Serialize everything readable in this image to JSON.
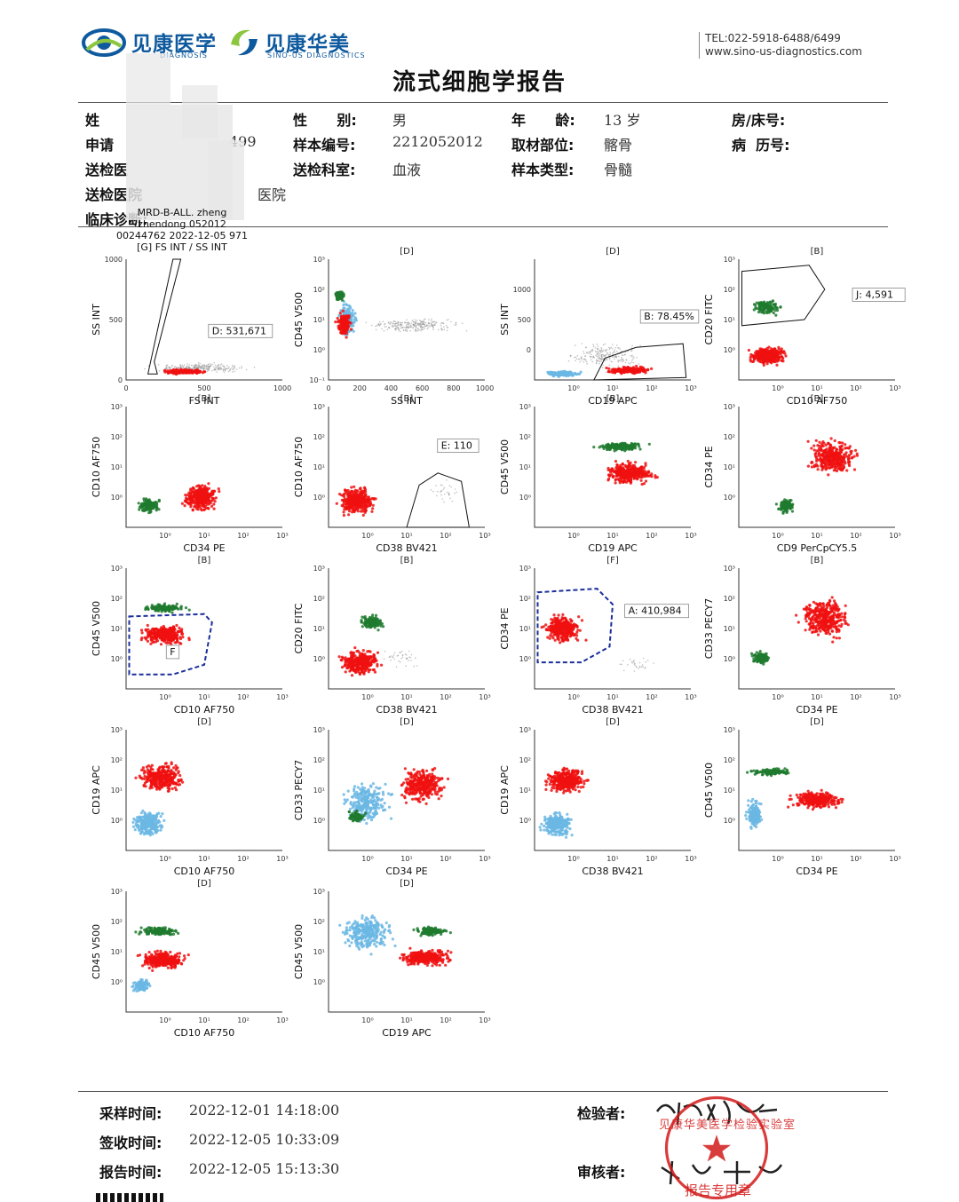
{
  "header": {
    "brand1": "见康医学",
    "brand1_sub": "DIAGNOSIS",
    "brand2": "见康华美",
    "brand2_sub": "SINO-US DIAGNOSTICS",
    "tel": "TEL:022-5918-6488/6499",
    "web": "www.sino-us-diagnostics.com",
    "title": "流式细胞学报告",
    "brand_color": "#0f5a9e"
  },
  "patient": {
    "name_label": "姓",
    "name_value": "",
    "gender_label": "性      别:",
    "gender_value": "男",
    "age_label": "年      龄:",
    "age_value": "13 岁",
    "bed_label": "房/床号:",
    "apply_label": "申请",
    "apply_value": "499",
    "sample_no_label": "样本编号:",
    "sample_no_value": "2212052012",
    "site_label": "取材部位:",
    "site_value": "髂骨",
    "record_label": "病  历号:",
    "doctor_label": "送检医",
    "dept_label": "送检科室:",
    "dept_value": "血液",
    "sample_type_label": "样本类型:",
    "sample_type_value": "骨髓",
    "hospital_label": "送检医院",
    "hospital_value": "医院",
    "diagnosis_label": "临床诊断:"
  },
  "plots": [
    {
      "id": "p1",
      "top": "",
      "x": "FS INT",
      "y": "SS INT",
      "linear": true,
      "xt": [
        "0",
        "500",
        "1000"
      ],
      "yt": [
        "0",
        "500",
        "1000"
      ],
      "gate": "D: 531,671",
      "header": [
        "MRD-B-ALL. zheng",
        "zhendong 052012",
        "00244762 2022-12-05 971",
        "[G] FS INT / SS INT"
      ]
    },
    {
      "id": "p2",
      "top": "[D]",
      "x": "SS INT",
      "y": "CD45 V500",
      "linear": true,
      "xt": [
        "0",
        "200",
        "400",
        "600",
        "800",
        "1000"
      ],
      "yt": [
        "10⁻¹",
        "10⁰",
        "10¹",
        "10²",
        "10³"
      ],
      "gate": ""
    },
    {
      "id": "p3",
      "top": "[D]",
      "x": "CD19 APC",
      "y": "SS INT",
      "linear": false,
      "xt": [
        "10⁰",
        "10¹",
        "10²",
        "10³"
      ],
      "yt": [
        "0",
        "500",
        "1000"
      ],
      "gate": "B: 78.45%"
    },
    {
      "id": "p4",
      "top": "[B]",
      "x": "CD10 AF750",
      "y": "CD20 FITC",
      "linear": false,
      "xt": [
        "10⁰",
        "10¹",
        "10²",
        "10³"
      ],
      "yt": [
        "10⁰",
        "10¹",
        "10²",
        "10³"
      ],
      "gate": "J: 4,591"
    },
    {
      "id": "p5",
      "top": "[B]",
      "x": "CD34 PE",
      "y": "CD10 AF750",
      "linear": false,
      "xt": [
        "10⁰",
        "10¹",
        "10²",
        "10³"
      ],
      "yt": [
        "10⁰",
        "10¹",
        "10²",
        "10³"
      ],
      "gate": ""
    },
    {
      "id": "p6",
      "top": "[B]",
      "x": "CD38 BV421",
      "y": "CD10 AF750",
      "linear": false,
      "xt": [
        "10⁰",
        "10¹",
        "10²",
        "10³"
      ],
      "yt": [
        "10⁰",
        "10¹",
        "10²",
        "10³"
      ],
      "gate": "E: 110"
    },
    {
      "id": "p7",
      "top": "[B]",
      "x": "CD19 APC",
      "y": "CD45 V500",
      "linear": false,
      "xt": [
        "10⁰",
        "10¹",
        "10²",
        "10³"
      ],
      "yt": [
        "10⁰",
        "10¹",
        "10²",
        "10³"
      ],
      "gate": ""
    },
    {
      "id": "p8",
      "top": "[B]",
      "x": "CD9 PerCpCY5.5",
      "y": "CD34 PE",
      "linear": false,
      "xt": [
        "10⁰",
        "10¹",
        "10²",
        "10³"
      ],
      "yt": [
        "10⁰",
        "10¹",
        "10²",
        "10³"
      ],
      "gate": ""
    },
    {
      "id": "p9",
      "top": "[B]",
      "x": "CD10 AF750",
      "y": "CD45 V500",
      "linear": false,
      "xt": [
        "10⁰",
        "10¹",
        "10²",
        "10³"
      ],
      "yt": [
        "10⁰",
        "10¹",
        "10²",
        "10³"
      ],
      "gate": "F"
    },
    {
      "id": "p10",
      "top": "[B]",
      "x": "CD38 BV421",
      "y": "CD20 FITC",
      "linear": false,
      "xt": [
        "10⁰",
        "10¹",
        "10²",
        "10³"
      ],
      "yt": [
        "10⁰",
        "10¹",
        "10²",
        "10³"
      ],
      "gate": ""
    },
    {
      "id": "p11",
      "top": "[F]",
      "x": "CD38 BV421",
      "y": "CD34 PE",
      "linear": false,
      "xt": [
        "10⁰",
        "10¹",
        "10²",
        "10³"
      ],
      "yt": [
        "10⁰",
        "10¹",
        "10²",
        "10³"
      ],
      "gate": "A: 410,984"
    },
    {
      "id": "p12",
      "top": "[B]",
      "x": "CD34 PE",
      "y": "CD33 PECY7",
      "linear": false,
      "xt": [
        "10⁰",
        "10¹",
        "10²",
        "10³"
      ],
      "yt": [
        "10⁰",
        "10¹",
        "10²",
        "10³"
      ],
      "gate": ""
    },
    {
      "id": "p13",
      "top": "[D]",
      "x": "CD10 AF750",
      "y": "CD19 APC",
      "linear": false,
      "xt": [
        "10⁰",
        "10¹",
        "10²",
        "10³"
      ],
      "yt": [
        "10⁰",
        "10¹",
        "10²",
        "10³"
      ],
      "gate": ""
    },
    {
      "id": "p14",
      "top": "[D]",
      "x": "CD34 PE",
      "y": "CD33 PECY7",
      "linear": false,
      "xt": [
        "10⁰",
        "10¹",
        "10²",
        "10³"
      ],
      "yt": [
        "10⁰",
        "10¹",
        "10²",
        "10³"
      ],
      "gate": ""
    },
    {
      "id": "p15",
      "top": "[D]",
      "x": "CD38 BV421",
      "y": "CD19 APC",
      "linear": false,
      "xt": [
        "10⁰",
        "10¹",
        "10²",
        "10³"
      ],
      "yt": [
        "10⁰",
        "10¹",
        "10²",
        "10³"
      ],
      "gate": ""
    },
    {
      "id": "p16",
      "top": "[D]",
      "x": "CD34 PE",
      "y": "CD45 V500",
      "linear": false,
      "xt": [
        "10⁰",
        "10¹",
        "10²",
        "10³"
      ],
      "yt": [
        "10⁰",
        "10¹",
        "10²",
        "10³"
      ],
      "gate": ""
    },
    {
      "id": "p17",
      "top": "[D]",
      "x": "CD10 AF750",
      "y": "CD45 V500",
      "linear": false,
      "xt": [
        "10⁰",
        "10¹",
        "10²",
        "10³"
      ],
      "yt": [
        "10⁰",
        "10¹",
        "10²",
        "10³"
      ],
      "gate": ""
    },
    {
      "id": "p18",
      "top": "[D]",
      "x": "CD19 APC",
      "y": "CD45 V500",
      "linear": false,
      "xt": [
        "10⁰",
        "10¹",
        "10²",
        "10³"
      ],
      "yt": [
        "10⁰",
        "10¹",
        "10²",
        "10³"
      ],
      "gate": ""
    }
  ],
  "colors": {
    "red": "#f01010",
    "green": "#1f7a2e",
    "blue": "#6bb7e4",
    "gray": "#9a9a9a"
  },
  "footer": {
    "sample_time_label": "采样时间:",
    "sample_time_value": "2022-12-01  14:18:00",
    "receive_time_label": "签收时间:",
    "receive_time_value": "2022-12-05  10:33:09",
    "report_time_label": "报告时间:",
    "report_time_value": "2022-12-05  15:13:30",
    "inspector_label": "检验者:",
    "reviewer_label": "审核者:",
    "stamp_text": "见康华美医学检验实验室",
    "stamp_sub": "报告专用章"
  }
}
